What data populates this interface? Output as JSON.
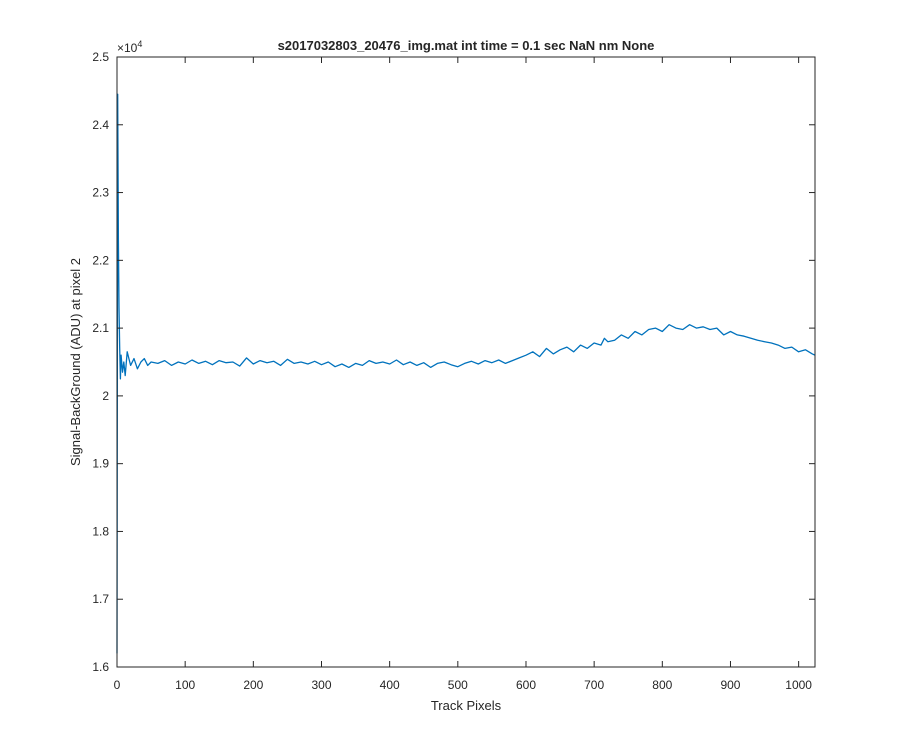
{
  "chart_data": {
    "type": "line",
    "title": "s2017032803_20476_img.mat int time = 0.1 sec  NaN nm None",
    "xlabel": "Track Pixels",
    "ylabel": "Signal-BackGround (ADU) at pixel 2",
    "xlim": [
      0,
      1024
    ],
    "ylim": [
      16000,
      25000
    ],
    "y_exponent_label": "×10",
    "y_exponent_power": "4",
    "x_ticks": [
      0,
      100,
      200,
      300,
      400,
      500,
      600,
      700,
      800,
      900,
      1000
    ],
    "x_tick_labels": [
      "0",
      "100",
      "200",
      "300",
      "400",
      "500",
      "600",
      "700",
      "800",
      "900",
      "1000"
    ],
    "y_ticks": [
      16000,
      17000,
      18000,
      19000,
      20000,
      21000,
      22000,
      23000,
      24000,
      25000
    ],
    "y_tick_labels": [
      "1.6",
      "1.7",
      "1.8",
      "1.9",
      "2",
      "2.1",
      "2.2",
      "2.3",
      "2.4",
      "2.5"
    ],
    "grid": false,
    "series": [
      {
        "color": "#0072BD",
        "x": [
          0,
          1,
          2,
          3,
          4,
          5,
          6,
          8,
          10,
          12,
          15,
          20,
          25,
          30,
          35,
          40,
          45,
          50,
          60,
          70,
          80,
          90,
          100,
          110,
          120,
          130,
          140,
          150,
          160,
          170,
          180,
          190,
          200,
          210,
          220,
          230,
          240,
          250,
          260,
          270,
          280,
          290,
          300,
          310,
          320,
          330,
          340,
          350,
          360,
          370,
          380,
          390,
          400,
          410,
          420,
          430,
          440,
          450,
          460,
          470,
          480,
          490,
          500,
          510,
          520,
          530,
          540,
          550,
          560,
          570,
          580,
          590,
          600,
          610,
          620,
          630,
          640,
          650,
          660,
          670,
          680,
          690,
          700,
          710,
          715,
          720,
          730,
          740,
          750,
          760,
          770,
          780,
          790,
          800,
          810,
          820,
          830,
          840,
          850,
          860,
          870,
          880,
          890,
          900,
          910,
          920,
          930,
          940,
          950,
          960,
          970,
          980,
          990,
          1000,
          1010,
          1020,
          1024
        ],
        "y": [
          16200,
          24450,
          22300,
          21300,
          20700,
          20250,
          20600,
          20350,
          20500,
          20300,
          20650,
          20450,
          20550,
          20400,
          20500,
          20550,
          20450,
          20500,
          20480,
          20520,
          20450,
          20500,
          20470,
          20530,
          20480,
          20510,
          20460,
          20520,
          20490,
          20500,
          20440,
          20560,
          20470,
          20520,
          20490,
          20510,
          20450,
          20540,
          20480,
          20500,
          20470,
          20510,
          20460,
          20500,
          20430,
          20470,
          20420,
          20480,
          20450,
          20520,
          20480,
          20500,
          20470,
          20530,
          20460,
          20500,
          20450,
          20490,
          20420,
          20480,
          20500,
          20460,
          20430,
          20480,
          20510,
          20470,
          20520,
          20490,
          20530,
          20480,
          20520,
          20560,
          20600,
          20650,
          20580,
          20700,
          20620,
          20680,
          20720,
          20650,
          20750,
          20700,
          20780,
          20750,
          20850,
          20800,
          20820,
          20900,
          20850,
          20950,
          20900,
          20980,
          21000,
          20950,
          21050,
          21000,
          20980,
          21050,
          21000,
          21020,
          20980,
          21000,
          20900,
          20950,
          20900,
          20880,
          20850,
          20820,
          20800,
          20780,
          20750,
          20700,
          20720,
          20650,
          20680,
          20620,
          20600
        ]
      }
    ]
  }
}
